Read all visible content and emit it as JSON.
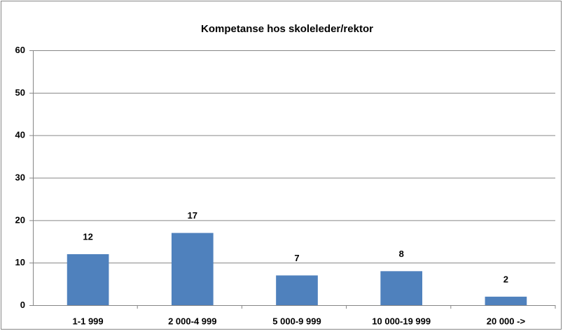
{
  "chart_data": {
    "type": "bar",
    "title": "Kompetanse hos skoleleder/rektor",
    "categories": [
      "1-1 999",
      "2 000-4 999",
      "5 000-9 999",
      "10 000-19 999",
      "20 000 ->"
    ],
    "values": [
      12,
      17,
      7,
      8,
      2
    ],
    "color": "#4f81bd",
    "ylim": [
      0,
      60
    ],
    "yticks": [
      0,
      10,
      20,
      30,
      40,
      50,
      60
    ],
    "grid": true
  }
}
